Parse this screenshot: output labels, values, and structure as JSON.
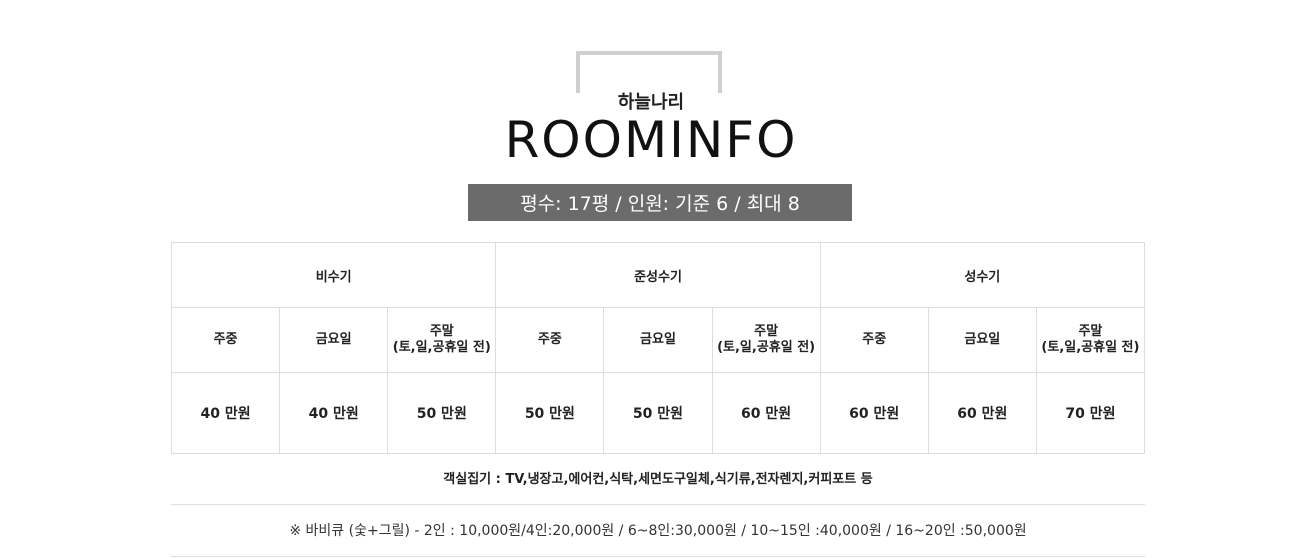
{
  "header": {
    "subtitle": "하늘나리",
    "title": "ROOMINFO",
    "info": "평수: 17평 / 인원: 기준 6 / 최대 8"
  },
  "rates": {
    "seasons": [
      "비수기",
      "준성수기",
      "성수기"
    ],
    "days": [
      [
        "주중",
        "금요일",
        "주말\n(토,일,공휴일 전)"
      ],
      [
        "주중",
        "금요일",
        "주말\n(토,일,공휴일 전)"
      ],
      [
        "주중",
        "금요일",
        "주말\n(토,일,공휴일 전)"
      ]
    ],
    "prices": [
      "40 만원",
      "40 만원",
      "50 만원",
      "50 만원",
      "50 만원",
      "60 만원",
      "60 만원",
      "60 만원",
      "70 만원"
    ]
  },
  "amenities": "객실집기 : TV,냉장고,에어컨,식탁,세면도구일체,식기류,전자렌지,커피포트 등",
  "bbq": "※ 바비큐 (숯+그릴) - 2인 : 10,000원/4인:20,000원 / 6~8인:30,000원 / 10~15인 :40,000원 / 16~20인 :50,000원"
}
